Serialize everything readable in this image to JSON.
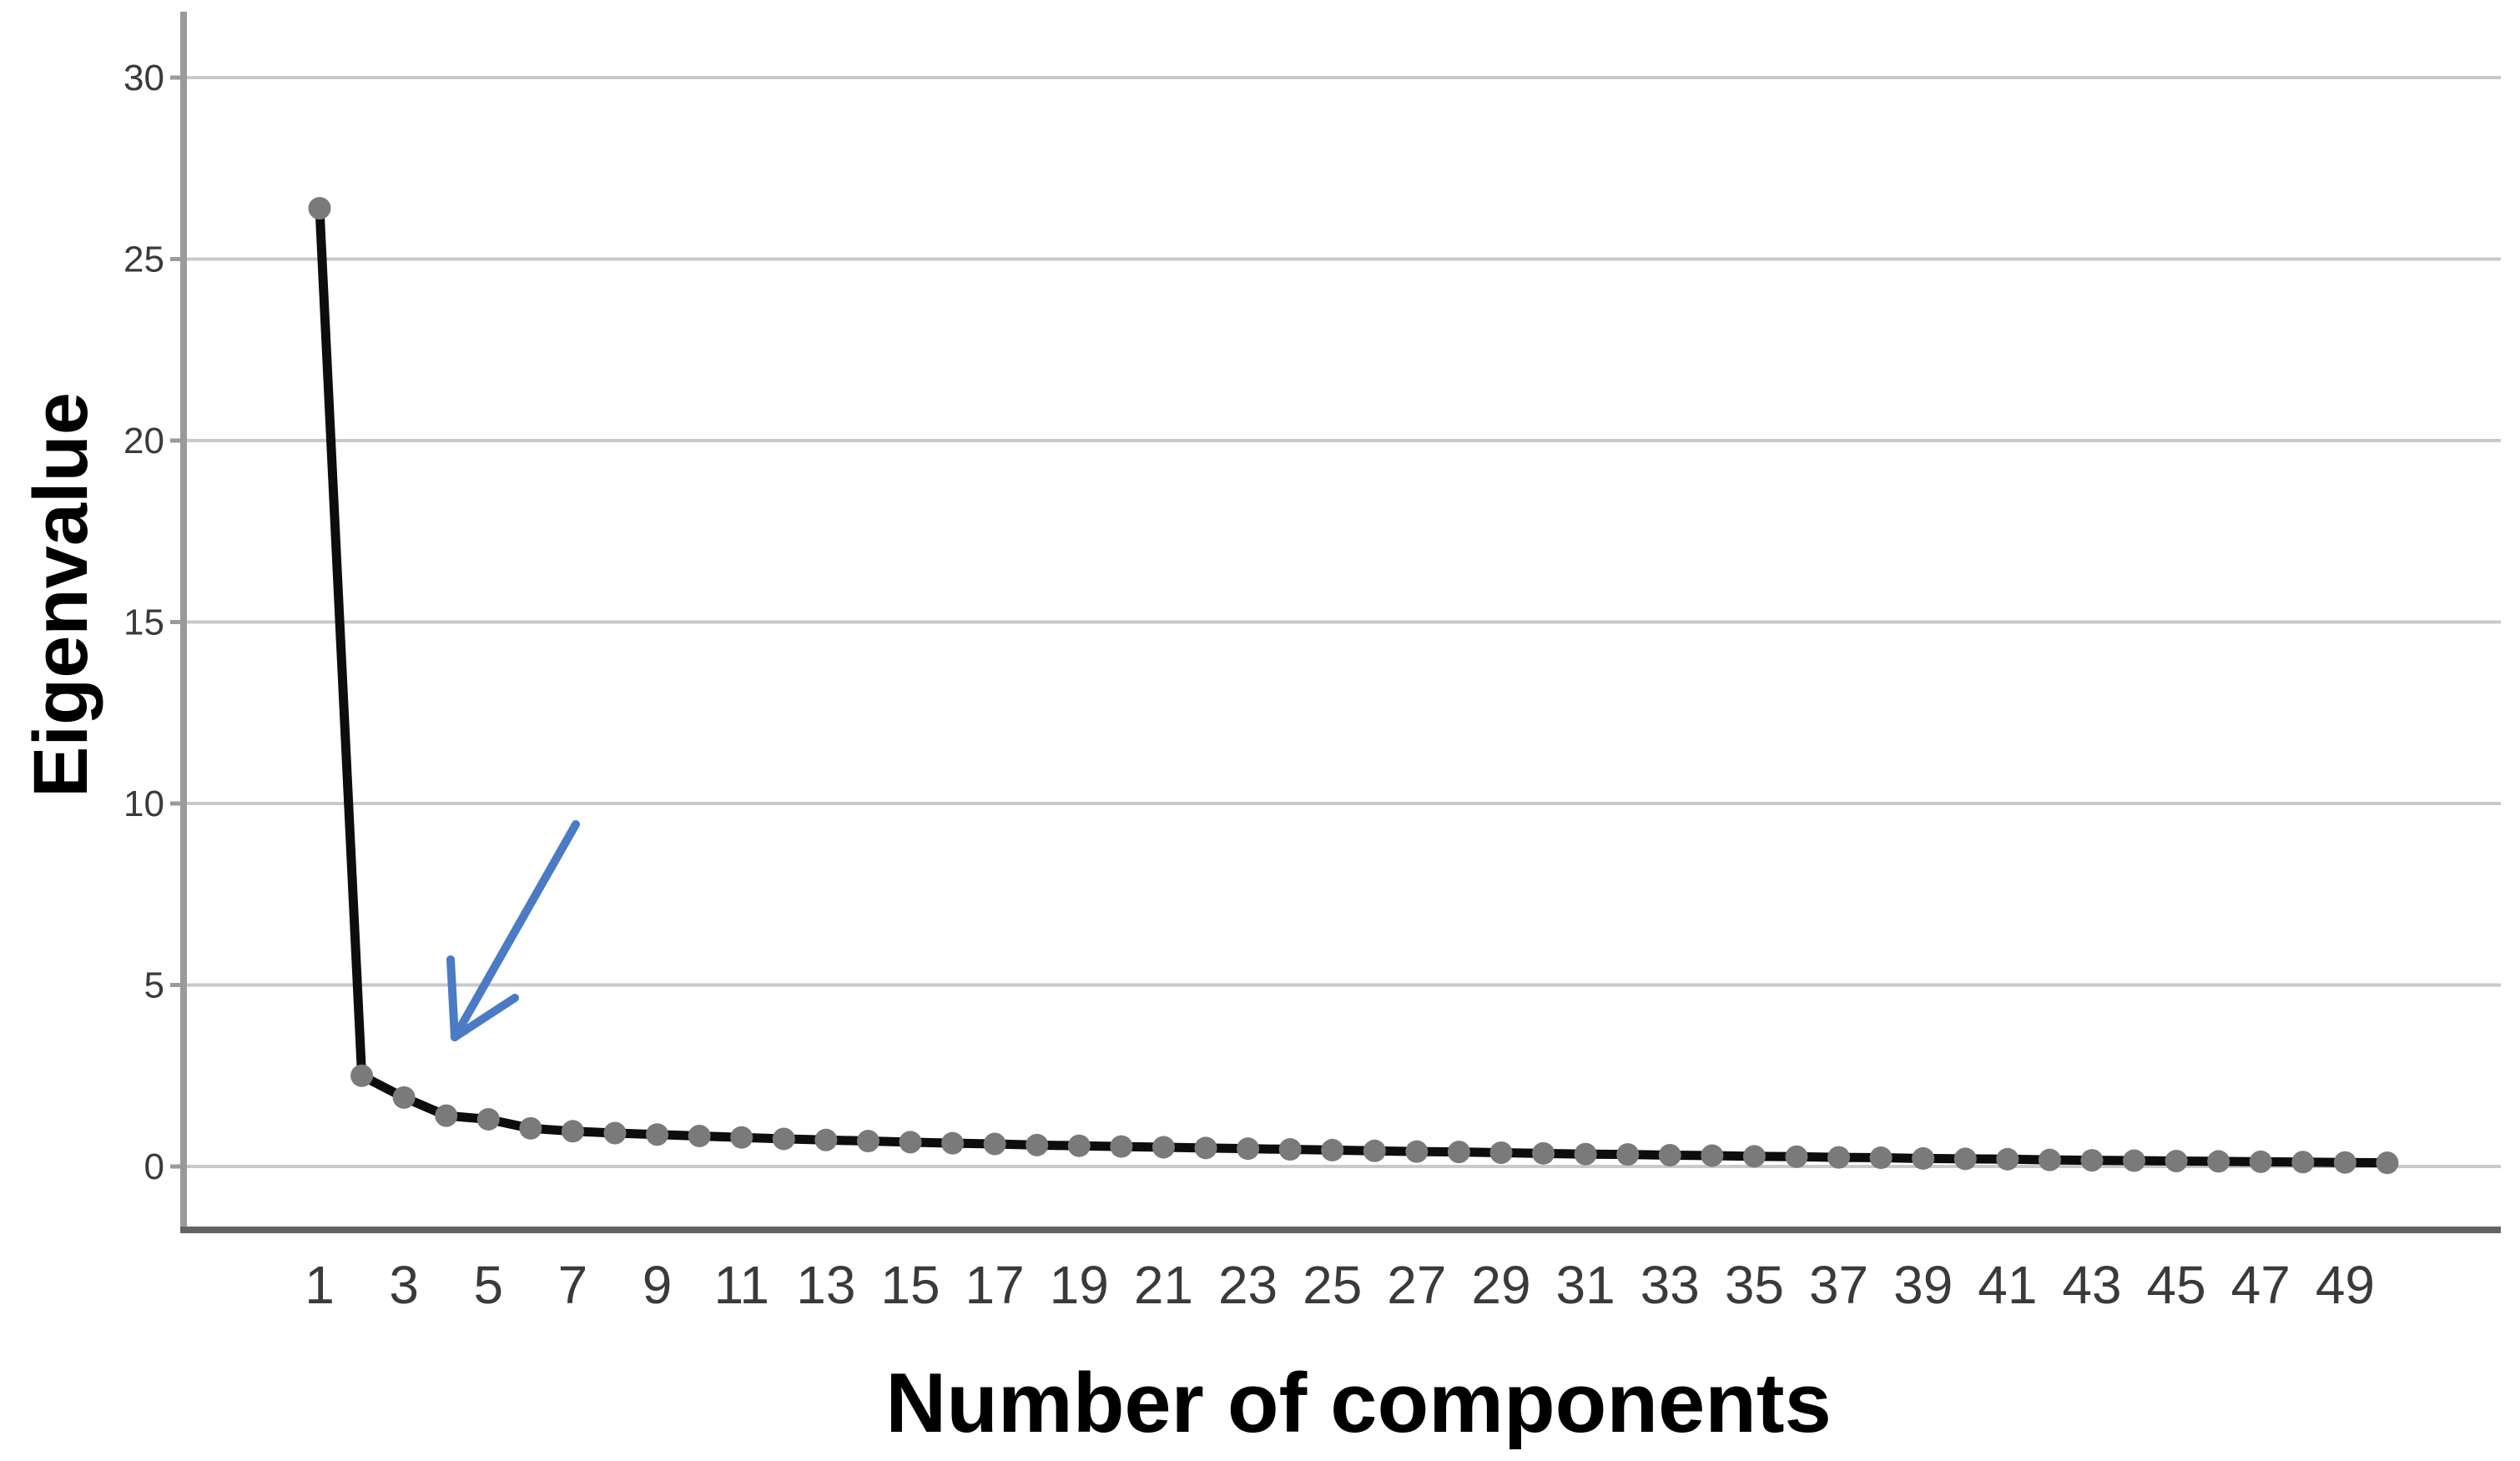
{
  "chart_data": {
    "type": "line",
    "title": "",
    "xlabel": "Number of components",
    "ylabel": "Eigenvalue",
    "x": [
      1,
      2,
      3,
      4,
      5,
      6,
      7,
      8,
      9,
      10,
      11,
      12,
      13,
      14,
      15,
      16,
      17,
      18,
      19,
      20,
      21,
      22,
      23,
      24,
      25,
      26,
      27,
      28,
      29,
      30,
      31,
      32,
      33,
      34,
      35,
      36,
      37,
      38,
      39,
      40,
      41,
      42,
      43,
      44,
      45,
      46,
      47,
      48,
      49,
      50
    ],
    "values": [
      26.4,
      2.5,
      1.9,
      1.4,
      1.3,
      1.05,
      0.97,
      0.92,
      0.88,
      0.84,
      0.8,
      0.76,
      0.73,
      0.7,
      0.67,
      0.64,
      0.62,
      0.59,
      0.57,
      0.55,
      0.53,
      0.51,
      0.49,
      0.47,
      0.45,
      0.43,
      0.41,
      0.4,
      0.38,
      0.36,
      0.34,
      0.33,
      0.31,
      0.3,
      0.28,
      0.27,
      0.25,
      0.24,
      0.22,
      0.21,
      0.2,
      0.18,
      0.17,
      0.16,
      0.15,
      0.14,
      0.13,
      0.12,
      0.11,
      0.1
    ],
    "x_tick_labels": [
      "1",
      "3",
      "5",
      "7",
      "9",
      "11",
      "13",
      "15",
      "17",
      "19",
      "21",
      "23",
      "25",
      "27",
      "29",
      "31",
      "33",
      "35",
      "37",
      "39",
      "41",
      "43",
      "45",
      "47",
      "49"
    ],
    "y_ticks": [
      0,
      5,
      10,
      15,
      20,
      25,
      30
    ],
    "ylim": [
      -1.75,
      31.8
    ],
    "xlim": [
      0.5,
      52.7
    ],
    "grid": "horizontal-only",
    "legend": "none",
    "marker": "filled-circle",
    "annotation": {
      "type": "arrow",
      "description": "hand-drawn arrow pointing down-left at the scree elbow near components 3-4",
      "color": "#4a7bc4"
    }
  },
  "colors": {
    "background": "#ffffff",
    "line": "#0d0d0d",
    "marker": "#7a7a7a",
    "grid": "#c9c9c9",
    "y_axis": "#9a9a9a",
    "x_axis": "#636363",
    "tick_label": "#3a3a3a",
    "axis_title": "#000000",
    "arrow": "#4a7bc4"
  }
}
